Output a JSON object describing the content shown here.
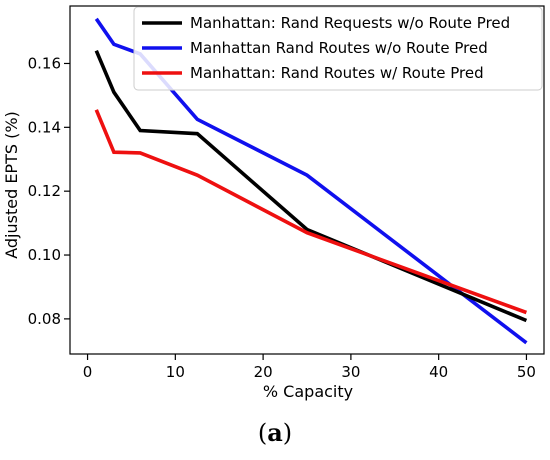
{
  "chart_data": {
    "type": "line",
    "xlabel": "% Capacity",
    "ylabel": "Adjusted EPTS (%)",
    "xlim": [
      -2,
      52
    ],
    "ylim": [
      0.069,
      0.178
    ],
    "x_ticks": [
      "0",
      "10",
      "20",
      "30",
      "40",
      "50"
    ],
    "x_tick_values": [
      0,
      10,
      20,
      30,
      40,
      50
    ],
    "y_ticks": [
      "0.08",
      "0.10",
      "0.12",
      "0.14",
      "0.16"
    ],
    "y_tick_values": [
      0.08,
      0.1,
      0.12,
      0.14,
      0.16
    ],
    "grid": false,
    "legend_position": "top-right",
    "series": [
      {
        "name": "Manhattan: Rand Requests w/o Route Pred",
        "color": "#000000",
        "x": [
          1,
          3,
          6,
          12.5,
          25,
          50
        ],
        "y": [
          0.164,
          0.151,
          0.139,
          0.138,
          0.108,
          0.0795
        ]
      },
      {
        "name": "Manhattan Rand Routes w/o Route Pred",
        "color": "#1010ee",
        "x": [
          1,
          3,
          6,
          12.5,
          25,
          50
        ],
        "y": [
          0.174,
          0.166,
          0.163,
          0.1425,
          0.125,
          0.0725
        ]
      },
      {
        "name": "Manhattan: Rand Routes w/ Route Pred",
        "color": "#ee1010",
        "x": [
          1,
          3,
          6,
          12.5,
          25,
          50
        ],
        "y": [
          0.1455,
          0.1322,
          0.132,
          0.125,
          0.107,
          0.082
        ]
      }
    ]
  },
  "caption": {
    "open": "(",
    "letter": "a",
    "close": ")"
  }
}
